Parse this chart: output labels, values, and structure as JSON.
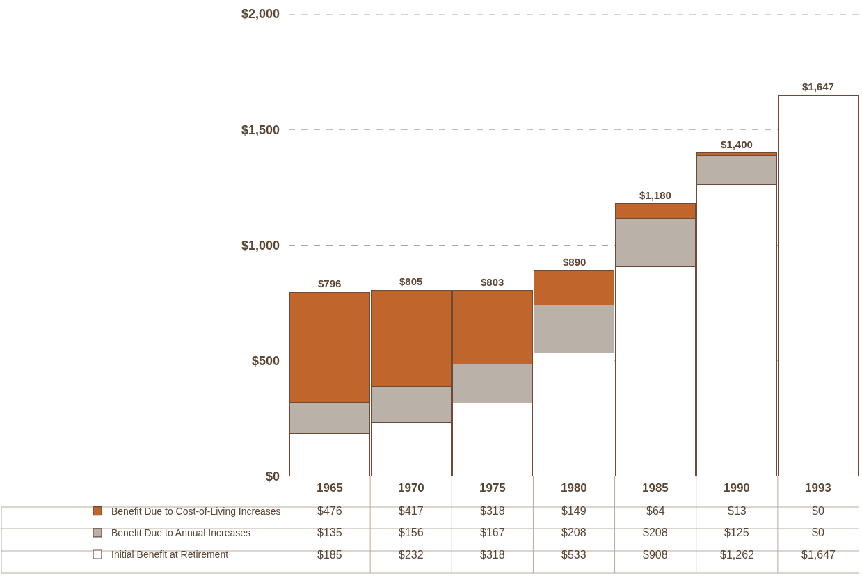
{
  "chart_data": {
    "type": "bar",
    "stacked": true,
    "categories": [
      "1965",
      "1970",
      "1975",
      "1980",
      "1985",
      "1990",
      "1993"
    ],
    "series": [
      {
        "name": "Initial Benefit at Retirement",
        "color": "#ffffff",
        "values": [
          185,
          232,
          318,
          533,
          908,
          1262,
          1647
        ],
        "value_labels": [
          "$185",
          "$232",
          "$318",
          "$533",
          "$908",
          "$1,262",
          "$1,647"
        ]
      },
      {
        "name": "Benefit Due to Annual Increases",
        "color": "#bab2a9",
        "values": [
          135,
          156,
          167,
          208,
          208,
          125,
          0
        ],
        "value_labels": [
          "$135",
          "$156",
          "$167",
          "$208",
          "$208",
          "$125",
          "$0"
        ]
      },
      {
        "name": "Benefit Due to Cost-of-Living Increases",
        "color": "#c0662c",
        "values": [
          476,
          417,
          318,
          149,
          64,
          13,
          0
        ],
        "value_labels": [
          "$476",
          "$417",
          "$318",
          "$149",
          "$64",
          "$13",
          "$0"
        ]
      }
    ],
    "totals": [
      "$796",
      "$805",
      "$803",
      "$890",
      "$1,180",
      "$1,400",
      "$1,647"
    ],
    "ylim": [
      0,
      2000
    ],
    "yticks": [
      {
        "value": 0,
        "label": "$0"
      },
      {
        "value": 500,
        "label": "$500"
      },
      {
        "value": 1000,
        "label": "$1,000"
      },
      {
        "value": 1500,
        "label": "$1,500"
      },
      {
        "value": 2000,
        "label": "$2,000"
      }
    ],
    "grid": "y",
    "legend": "bottom left"
  }
}
